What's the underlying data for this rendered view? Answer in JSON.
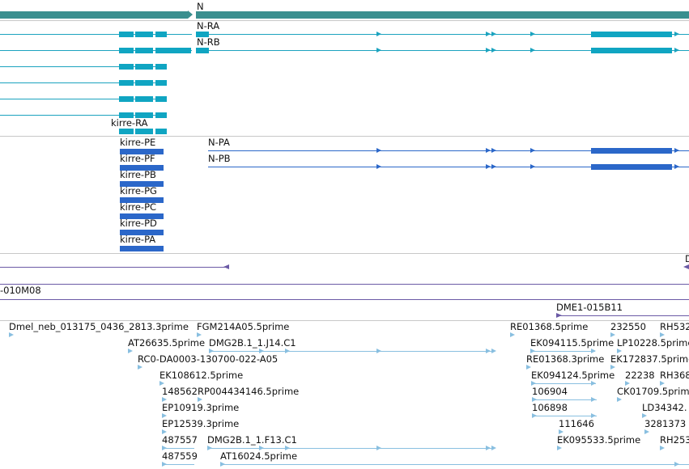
{
  "gene": {
    "label": "N"
  },
  "transcripts": {
    "n_ra": "N-RA",
    "n_rb": "N-RB",
    "kirre_ra": "kirre-RA"
  },
  "proteins": {
    "n_pa": "N-PA",
    "n_pb": "N-PB",
    "kirre": [
      "kirre-PE",
      "kirre-PF",
      "kirre-PB",
      "kirre-PG",
      "kirre-PC",
      "kirre-PD",
      "kirre-PA"
    ]
  },
  "clones": {
    "left_clone": "-010M08",
    "dme_clone": "DME1-015B11",
    "right_edge": "D"
  },
  "ests": {
    "e1": "Dmel_neb_013175_0436_2813.3prime",
    "e2": "FGM214A05.5prime",
    "e3": "RE01368.5prime",
    "e4": "232550",
    "e5": "RH532",
    "e6": "AT26635.5prime",
    "e7": "DMG2B.1_1.J14.C1",
    "e8": "EK094115.5prime",
    "e9": "LP10228.5prime",
    "e10": "RC0-DA0003-130700-022-A05",
    "e11": "RE01368.3prime",
    "e12": "EK172837.5prime",
    "e13": "EK108612.5prime",
    "e14": "EK094124.5prime",
    "e15": "22238",
    "e16": "RH368",
    "e17": "148562",
    "e18": "RP004434146.5prime",
    "e19": "106904",
    "e20": "CK01709.5prime",
    "e21": "EP10919.3prime",
    "e22": "106898",
    "e23": "LD34342.",
    "e24": "EP12539.3prime",
    "e25": "111646",
    "e26": "3281373",
    "e27": "487557",
    "e28": "DMG2B.1_1.F13.C1",
    "e29": "EK095533.5prime",
    "e30": "RH253",
    "e31": "487559",
    "e32": "AT16024.5prime"
  },
  "colors": {
    "gene": "#3a8f8f",
    "transcript": "#10a5c2",
    "protein": "#2b67c9",
    "est": "#89bfe0",
    "clone": "#6b5aa6"
  }
}
